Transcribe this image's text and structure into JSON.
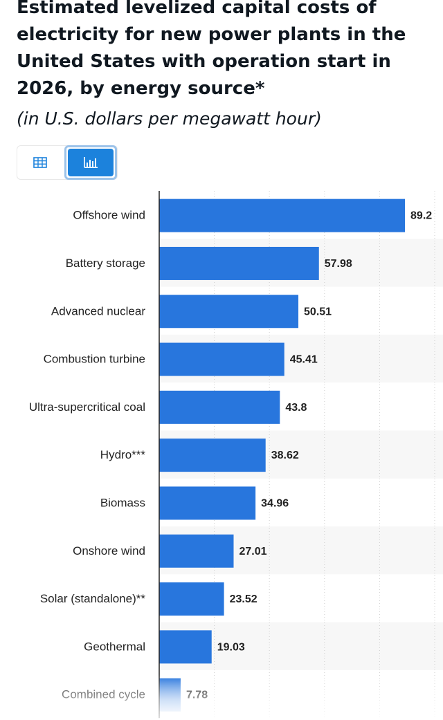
{
  "header": {
    "title": "Estimated levelized capital costs of electricity for new power plants in the United States with operation start in 2026, by energy source*",
    "subtitle": "(in U.S. dollars per megawatt hour)"
  },
  "view_toggle": {
    "table_icon": "table-grid-icon",
    "chart_icon": "bar-chart-icon",
    "active": "chart",
    "active_color": "#1c82dc"
  },
  "chart_data": {
    "type": "bar",
    "orientation": "horizontal",
    "categories": [
      "Offshore wind",
      "Battery storage",
      "Advanced nuclear",
      "Combustion turbine",
      "Ultra-supercritical coal",
      "Hydro***",
      "Biomass",
      "Onshore wind",
      "Solar (standalone)**",
      "Geothermal",
      "Combined cycle"
    ],
    "values": [
      89.2,
      57.98,
      50.51,
      45.41,
      43.8,
      38.62,
      34.96,
      27.01,
      23.52,
      19.03,
      7.78
    ],
    "value_labels": [
      "89.2",
      "57.98",
      "50.51",
      "45.41",
      "43.8",
      "38.62",
      "34.96",
      "27.01",
      "23.52",
      "19.03",
      "7.78"
    ],
    "xlim": [
      0,
      100
    ],
    "grid": true,
    "bar_color": "#2876dd",
    "title": "Estimated levelized capital costs of electricity for new power plants in the United States with operation start in 2026, by energy source*",
    "xlabel": "",
    "ylabel": ""
  }
}
